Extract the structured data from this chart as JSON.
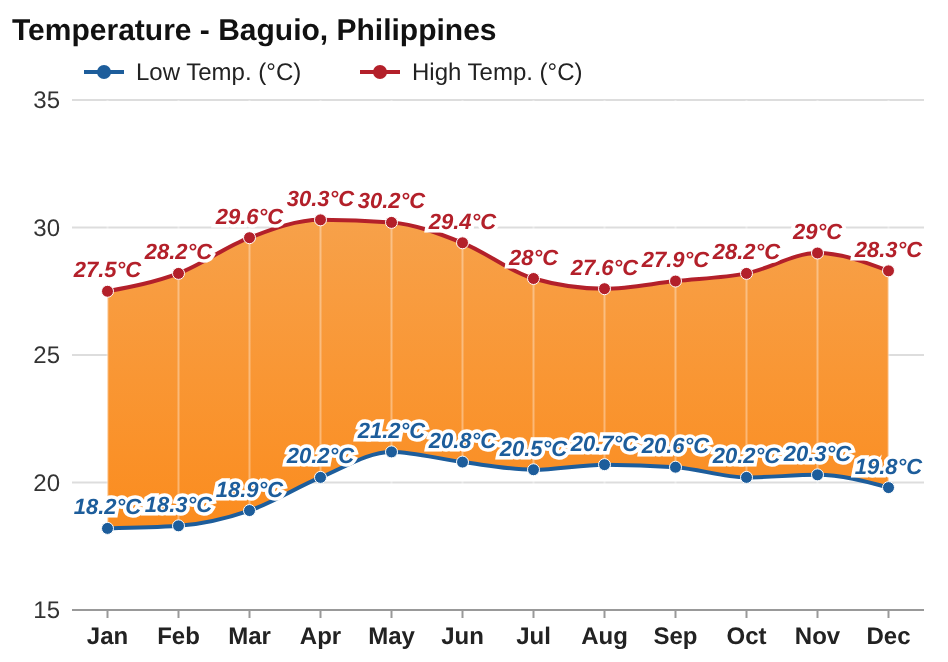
{
  "chart_data": {
    "type": "line",
    "title": "Temperature - Baguio, Philippines",
    "categories": [
      "Jan",
      "Feb",
      "Mar",
      "Apr",
      "May",
      "Jun",
      "Jul",
      "Aug",
      "Sep",
      "Oct",
      "Nov",
      "Dec"
    ],
    "series": [
      {
        "name": "Low Temp. (°C)",
        "color": "#1d5d9b",
        "type": "line",
        "values": [
          18.2,
          18.3,
          18.9,
          20.2,
          21.2,
          20.8,
          20.5,
          20.7,
          20.6,
          20.2,
          20.3,
          19.8
        ],
        "value_labels": [
          "18.2°C",
          "18.3°C",
          "18.9°C",
          "20.2°C",
          "21.2°C",
          "20.8°C",
          "20.5°C",
          "20.7°C",
          "20.6°C",
          "20.2°C",
          "20.3°C",
          "19.8°C"
        ]
      },
      {
        "name": "High Temp. (°C)",
        "color": "#b3202a",
        "type": "area",
        "values": [
          27.5,
          28.2,
          29.6,
          30.3,
          30.2,
          29.4,
          28,
          27.6,
          27.9,
          28.2,
          29,
          28.3
        ],
        "value_labels": [
          "27.5°C",
          "28.2°C",
          "29.6°C",
          "30.3°C",
          "30.2°C",
          "29.4°C",
          "28°C",
          "27.6°C",
          "27.9°C",
          "28.2°C",
          "29°C",
          "28.3°C"
        ]
      }
    ],
    "ylim": [
      15,
      35
    ],
    "yticks": [
      15,
      20,
      25,
      30,
      35
    ],
    "grid": true,
    "legend": "top left",
    "marker": "circle",
    "line_style": "solid"
  }
}
